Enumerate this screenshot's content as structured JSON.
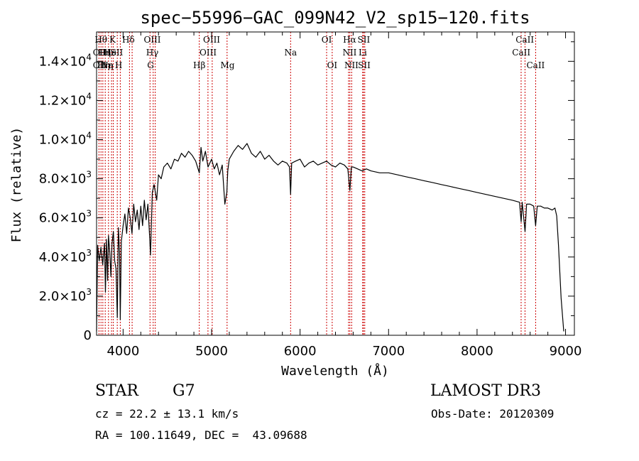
{
  "chart_data": {
    "type": "line",
    "title": "spec−55996−GAC_099N42_V2_sp15−120.fits",
    "xlabel": "Wavelength (Å)",
    "ylabel": "Flux (relative)",
    "xlim": [
      3700,
      9100
    ],
    "ylim": [
      0,
      15500
    ],
    "x_ticks": [
      {
        "value": 4000,
        "label": "4000"
      },
      {
        "value": 5000,
        "label": "5000"
      },
      {
        "value": 6000,
        "label": "6000"
      },
      {
        "value": 7000,
        "label": "7000"
      },
      {
        "value": 8000,
        "label": "8000"
      },
      {
        "value": 9000,
        "label": "9000"
      }
    ],
    "y_ticks": [
      {
        "value": 0,
        "mant": "0",
        "exp": ""
      },
      {
        "value": 2000,
        "mant": "2.0×10",
        "exp": "3"
      },
      {
        "value": 4000,
        "mant": "4.0×10",
        "exp": "3"
      },
      {
        "value": 6000,
        "mant": "6.0×10",
        "exp": "3"
      },
      {
        "value": 8000,
        "mant": "8.0×10",
        "exp": "3"
      },
      {
        "value": 10000,
        "mant": "1.0×10",
        "exp": "4"
      },
      {
        "value": 12000,
        "mant": "1.2×10",
        "exp": "4"
      },
      {
        "value": 14000,
        "mant": "1.4×10",
        "exp": "4"
      }
    ],
    "series": [
      {
        "name": "spectrum",
        "color": "#000000",
        "x": [
          3700,
          3712,
          3730,
          3750,
          3770,
          3790,
          3800,
          3812,
          3825,
          3835,
          3850,
          3862,
          3875,
          3890,
          3905,
          3920,
          3934,
          3946,
          3960,
          3968,
          3980,
          4000,
          4020,
          4040,
          4060,
          4080,
          4100,
          4120,
          4140,
          4160,
          4180,
          4200,
          4220,
          4240,
          4260,
          4280,
          4300,
          4310,
          4330,
          4350,
          4380,
          4400,
          4430,
          4460,
          4500,
          4540,
          4580,
          4620,
          4660,
          4700,
          4740,
          4780,
          4820,
          4861,
          4880,
          4900,
          4930,
          4960,
          5000,
          5030,
          5060,
          5090,
          5120,
          5150,
          5172,
          5183,
          5200,
          5250,
          5300,
          5350,
          5400,
          5450,
          5500,
          5550,
          5600,
          5650,
          5700,
          5750,
          5800,
          5850,
          5880,
          5893,
          5905,
          5950,
          6000,
          6050,
          6100,
          6150,
          6200,
          6250,
          6300,
          6350,
          6400,
          6450,
          6500,
          6540,
          6563,
          6580,
          6600,
          6650,
          6700,
          6750,
          6800,
          6900,
          7000,
          7100,
          7200,
          7300,
          7400,
          7500,
          7600,
          7700,
          7800,
          7900,
          8000,
          8100,
          8200,
          8300,
          8400,
          8480,
          8498,
          8510,
          8542,
          8560,
          8600,
          8640,
          8662,
          8680,
          8720,
          8760,
          8800,
          8850,
          8880,
          8900,
          8920,
          8950,
          8980
        ],
        "y": [
          200,
          4600,
          3800,
          4500,
          3600,
          4700,
          2200,
          4900,
          2800,
          5100,
          4200,
          3000,
          4700,
          5300,
          3800,
          3400,
          900,
          5500,
          4200,
          800,
          4800,
          5600,
          6200,
          5200,
          6500,
          6000,
          5200,
          6700,
          5800,
          6400,
          5400,
          6600,
          5600,
          6900,
          5900,
          6700,
          5000,
          4100,
          7300,
          7700,
          6900,
          8200,
          8000,
          8600,
          8800,
          8500,
          9000,
          8900,
          9300,
          9100,
          9400,
          9200,
          8900,
          8300,
          9600,
          8900,
          9400,
          8600,
          9000,
          8500,
          8800,
          8200,
          8700,
          6700,
          7300,
          8400,
          9000,
          9400,
          9700,
          9500,
          9800,
          9300,
          9100,
          9400,
          9000,
          9200,
          8900,
          8700,
          8900,
          8800,
          8600,
          7200,
          8800,
          8900,
          9000,
          8600,
          8800,
          8900,
          8700,
          8800,
          8900,
          8700,
          8600,
          8800,
          8700,
          8500,
          7400,
          8600,
          8600,
          8500,
          8400,
          8500,
          8400,
          8300,
          8300,
          8200,
          8100,
          8000,
          7900,
          7800,
          7700,
          7600,
          7500,
          7400,
          7300,
          7200,
          7100,
          7000,
          6900,
          6800,
          5800,
          6800,
          5300,
          6700,
          6700,
          6600,
          5600,
          6600,
          6600,
          6500,
          6500,
          6400,
          6500,
          6100,
          4600,
          1900,
          200
        ]
      }
    ],
    "line_labels": [
      {
        "w": 3750,
        "row": 0,
        "text": "Hθ"
      },
      {
        "w": 3735,
        "row": 1,
        "text": "OII"
      },
      {
        "w": 3790,
        "row": 1,
        "text": "Hη"
      },
      {
        "w": 3735,
        "row": 2,
        "text": "OII"
      },
      {
        "w": 3780,
        "row": 2,
        "text": "Hη"
      },
      {
        "w": 3880,
        "row": 0,
        "text": "K"
      },
      {
        "w": 3855,
        "row": 1,
        "text": "He"
      },
      {
        "w": 3910,
        "row": 1,
        "text": "ISII"
      },
      {
        "w": 3820,
        "row": 2,
        "text": "Ne"
      },
      {
        "w": 3860,
        "row": 2,
        "text": "η"
      },
      {
        "w": 3950,
        "row": 2,
        "text": "H"
      },
      {
        "w": 4060,
        "row": 0,
        "text": "Hδ"
      },
      {
        "w": 4330,
        "row": 0,
        "text": "OIII"
      },
      {
        "w": 4330,
        "row": 1,
        "text": "Hγ"
      },
      {
        "w": 4310,
        "row": 2,
        "text": "G"
      },
      {
        "w": 5000,
        "row": 0,
        "text": "OIII"
      },
      {
        "w": 4960,
        "row": 1,
        "text": "OIII"
      },
      {
        "w": 4861,
        "row": 2,
        "text": "Hβ"
      },
      {
        "w": 5180,
        "row": 2,
        "text": "Mg"
      },
      {
        "w": 5893,
        "row": 1,
        "text": "Na"
      },
      {
        "w": 6300,
        "row": 0,
        "text": "OI"
      },
      {
        "w": 6363,
        "row": 2,
        "text": "OI"
      },
      {
        "w": 6560,
        "row": 0,
        "text": "Hα"
      },
      {
        "w": 6560,
        "row": 1,
        "text": "NII"
      },
      {
        "w": 6580,
        "row": 2,
        "text": "NII"
      },
      {
        "w": 6720,
        "row": 0,
        "text": "SII"
      },
      {
        "w": 6708,
        "row": 1,
        "text": "Li"
      },
      {
        "w": 6725,
        "row": 2,
        "text": "SII"
      },
      {
        "w": 8540,
        "row": 0,
        "text": "CaII"
      },
      {
        "w": 8500,
        "row": 1,
        "text": "CaII"
      },
      {
        "w": 8662,
        "row": 2,
        "text": "CaII"
      }
    ],
    "line_marks": [
      3727,
      3750,
      3771,
      3798,
      3835,
      3869,
      3889,
      3934,
      3968,
      4072,
      4102,
      4304,
      4340,
      4363,
      4861,
      4959,
      5007,
      5175,
      5893,
      6300,
      6363,
      6548,
      6563,
      6583,
      6708,
      6716,
      6731,
      8498,
      8542,
      8662
    ],
    "line_mark_color": "#cc0000"
  },
  "footer": {
    "object_class": "STAR",
    "subclass": "G7",
    "survey": "LAMOST DR3",
    "cz": "cz = 22.2 ± 13.1 km/s",
    "obs_date": "Obs-Date: 20120309",
    "coords": "RA = 100.11649, DEC =  43.09688"
  }
}
